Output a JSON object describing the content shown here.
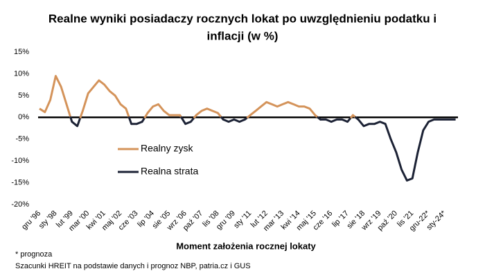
{
  "chart_data": {
    "type": "line",
    "title": [
      "Realne wyniki posiadaczy rocznych lokat po uwzględnieniu podatku i",
      "inflacji (w %)"
    ],
    "x_label": "Moment założenia rocznej lokaty",
    "notes": [
      "* prognoza",
      "Szacunki HREIT na podstawie danych i prognoz NBP,  patria.cz  i GUS"
    ],
    "categories": [
      "gru '96",
      null,
      null,
      "sty '98",
      null,
      null,
      "lut '99",
      null,
      null,
      "mar '00",
      null,
      null,
      "kwi '01",
      null,
      null,
      "maj '02",
      null,
      null,
      "cze '03",
      null,
      null,
      "lip '04",
      null,
      null,
      "sie '05",
      null,
      null,
      "wrz '06",
      null,
      null,
      "paź '07",
      null,
      null,
      "lis '08",
      null,
      null,
      "gru '09",
      null,
      null,
      "sty '11",
      null,
      null,
      "lut '12",
      null,
      null,
      "mar '13",
      null,
      null,
      "kwi '14",
      null,
      null,
      "maj '15",
      null,
      null,
      "cze '16",
      null,
      null,
      "lip '17",
      null,
      null,
      "sie '18",
      null,
      null,
      "wrz '19",
      null,
      null,
      "paź '20",
      null,
      null,
      "lis '21",
      null,
      null,
      "gru-22*",
      null,
      null,
      "sty-24*",
      null,
      null
    ],
    "series": [
      {
        "name": "Realny zysk",
        "color": "#d4935a",
        "values": [
          2,
          1.2,
          4,
          9.5,
          7,
          3,
          null,
          null,
          1.5,
          5.5,
          7,
          8.5,
          7.5,
          6,
          5,
          3,
          2,
          null,
          null,
          null,
          1,
          2.5,
          3,
          1.5,
          0.5,
          0.5,
          0.5,
          null,
          null,
          0.5,
          1.5,
          2,
          1.5,
          1,
          null,
          null,
          null,
          null,
          null,
          0.5,
          1.5,
          2.5,
          3.5,
          3,
          2.5,
          3,
          3.5,
          3,
          2.5,
          2.5,
          2,
          0.5,
          null,
          null,
          null,
          null,
          null,
          null,
          0.5,
          null,
          null,
          null,
          null,
          null,
          null,
          null,
          null,
          null,
          null,
          null,
          null,
          null,
          null,
          null,
          null,
          null,
          null,
          null
        ]
      },
      {
        "name": "Realna strata",
        "color": "#1c2235",
        "values": [
          null,
          null,
          null,
          null,
          null,
          null,
          -1,
          -2,
          null,
          null,
          null,
          null,
          null,
          null,
          null,
          null,
          null,
          -1.5,
          -1.5,
          -1,
          null,
          null,
          null,
          null,
          null,
          null,
          null,
          -1.5,
          -1,
          null,
          null,
          null,
          null,
          null,
          -0.5,
          -1,
          -0.5,
          -1,
          -0.5,
          null,
          null,
          null,
          null,
          null,
          null,
          null,
          null,
          null,
          null,
          null,
          null,
          null,
          -0.5,
          -0.5,
          -1,
          -0.5,
          -0.5,
          -1,
          null,
          -0.5,
          -2,
          -1.5,
          -1.5,
          -1,
          -1.5,
          -5,
          -8,
          -12,
          -14.5,
          -14,
          -8,
          -3,
          -1,
          -0.5,
          -0.5,
          -0.5,
          -0.5,
          -0.5
        ]
      }
    ],
    "ylim": [
      -20,
      15
    ],
    "yticks": [
      {
        "value": -20,
        "label": "-20%"
      },
      {
        "value": -15,
        "label": "-15%"
      },
      {
        "value": -10,
        "label": "-10%"
      },
      {
        "value": -5,
        "label": "-5%"
      },
      {
        "value": 0,
        "label": "0%"
      },
      {
        "value": 5,
        "label": "5%"
      },
      {
        "value": 10,
        "label": "10%"
      },
      {
        "value": 15,
        "label": "15%"
      }
    ],
    "grid": false
  }
}
